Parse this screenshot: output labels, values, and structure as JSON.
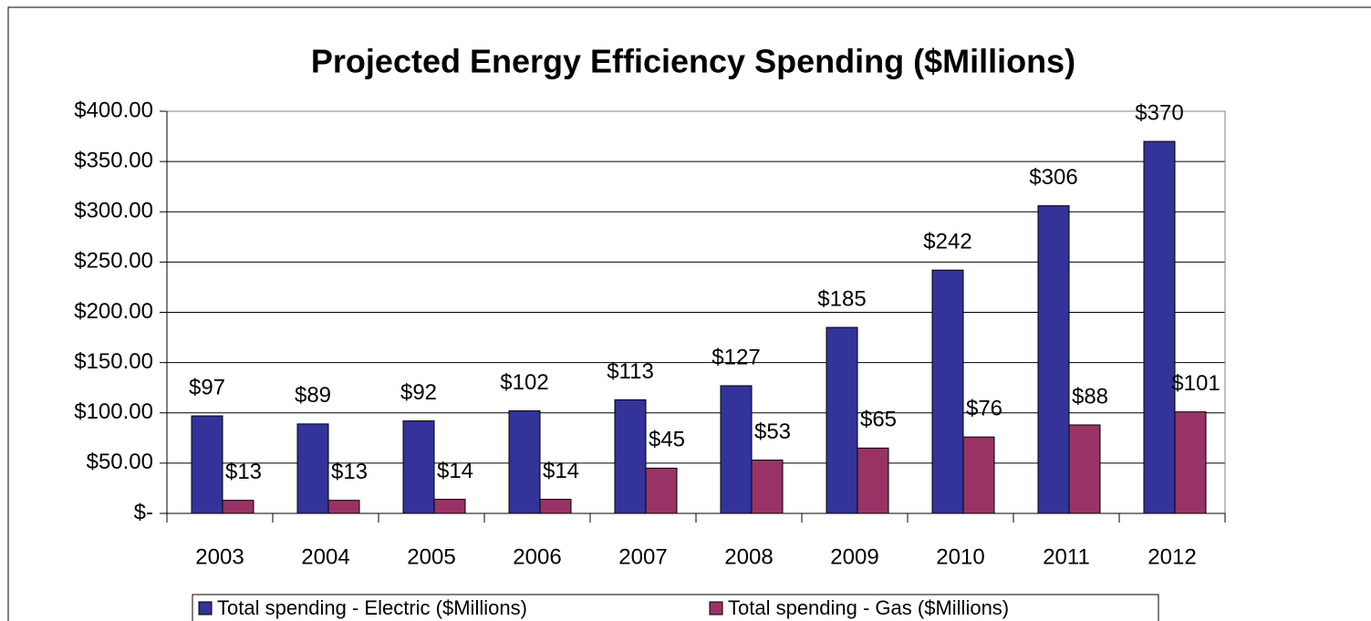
{
  "chart_data": {
    "type": "bar",
    "title": "Projected Energy Efficiency Spending ($Millions)",
    "categories": [
      "2003",
      "2004",
      "2005",
      "2006",
      "2007",
      "2008",
      "2009",
      "2010",
      "2011",
      "2012"
    ],
    "series": [
      {
        "name": "Total spending - Electric ($Millions)",
        "color": "#333399",
        "values": [
          97,
          89,
          92,
          102,
          113,
          127,
          185,
          242,
          306,
          370
        ],
        "value_labels": [
          "$97",
          "$89",
          "$92",
          "$102",
          "$113",
          "$127",
          "$185",
          "$242",
          "$306",
          "$370"
        ]
      },
      {
        "name": "Total spending - Gas ($Millions)",
        "color": "#993366",
        "values": [
          13,
          13,
          14,
          14,
          45,
          53,
          65,
          76,
          88,
          101
        ],
        "value_labels": [
          "$13",
          "$13",
          "$14",
          "$14",
          "$45",
          "$53",
          "$65",
          "$76",
          "$88",
          "$101"
        ]
      }
    ],
    "ylim": [
      0,
      400
    ],
    "yticks": [
      {
        "value": 0,
        "label": "$-"
      },
      {
        "value": 50,
        "label": "$50.00"
      },
      {
        "value": 100,
        "label": "$100.00"
      },
      {
        "value": 150,
        "label": "$150.00"
      },
      {
        "value": 200,
        "label": "$200.00"
      },
      {
        "value": 250,
        "label": "$250.00"
      },
      {
        "value": 300,
        "label": "$300.00"
      },
      {
        "value": 350,
        "label": "$350.00"
      },
      {
        "value": 400,
        "label": "$400.00"
      }
    ],
    "grid": true,
    "legend": "bottom"
  }
}
